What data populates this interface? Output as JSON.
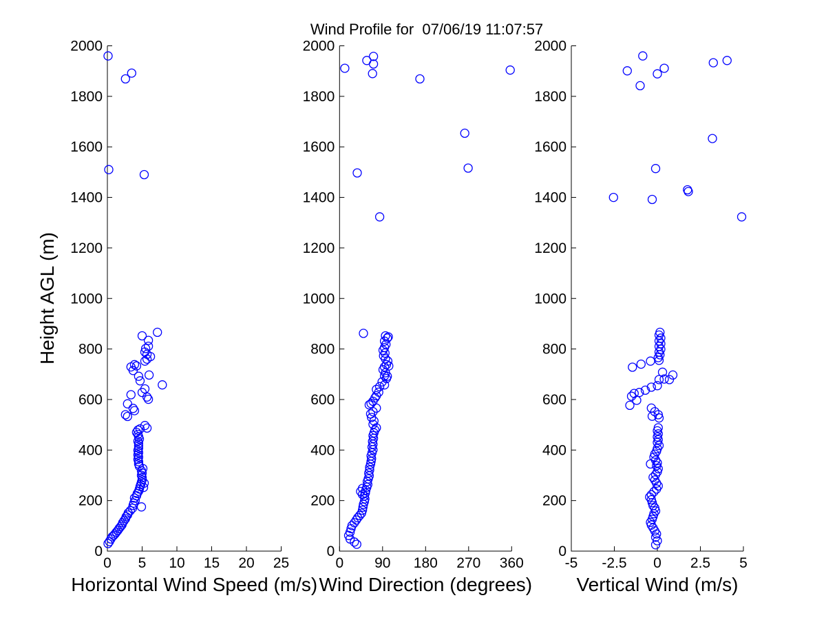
{
  "figure": {
    "title": "Wind Profile for  07/06/19 11:07:57",
    "background": "#ffffff",
    "axis_color": "#000000",
    "marker_color": "#0000ff",
    "marker_shape": "open-circle"
  },
  "chart_data": [
    {
      "type": "scatter",
      "xlabel": "Horizontal Wind Speed (m/s)",
      "ylabel": "Height AGL (m)",
      "xlim": [
        0,
        25
      ],
      "xticks": [
        0,
        5,
        10,
        15,
        20,
        25
      ],
      "ylim": [
        0,
        2000
      ],
      "yticks": [
        0,
        200,
        400,
        600,
        800,
        1000,
        1200,
        1400,
        1600,
        1800,
        2000
      ],
      "grid": false,
      "legend": null,
      "points": [
        [
          0.1,
          30
        ],
        [
          0.3,
          38
        ],
        [
          0.5,
          48
        ],
        [
          0.7,
          57
        ],
        [
          0.9,
          62
        ],
        [
          1.1,
          68
        ],
        [
          1.3,
          75
        ],
        [
          1.5,
          82
        ],
        [
          1.7,
          90
        ],
        [
          1.9,
          97
        ],
        [
          2.1,
          104
        ],
        [
          2.2,
          112
        ],
        [
          2.4,
          120
        ],
        [
          2.6,
          128
        ],
        [
          2.7,
          136
        ],
        [
          2.9,
          143
        ],
        [
          3.0,
          151
        ],
        [
          3.3,
          160
        ],
        [
          3.6,
          170
        ],
        [
          4.9,
          175
        ],
        [
          3.7,
          181
        ],
        [
          3.8,
          190
        ],
        [
          4.0,
          200
        ],
        [
          3.9,
          210
        ],
        [
          4.2,
          219
        ],
        [
          4.3,
          228
        ],
        [
          4.5,
          237
        ],
        [
          4.6,
          246
        ],
        [
          5.2,
          252
        ],
        [
          4.7,
          256
        ],
        [
          4.8,
          264
        ],
        [
          5.3,
          269
        ],
        [
          4.9,
          273
        ],
        [
          5.0,
          282
        ],
        [
          5.0,
          291
        ],
        [
          4.9,
          300
        ],
        [
          5.0,
          309
        ],
        [
          4.9,
          318
        ],
        [
          5.1,
          327
        ],
        [
          4.6,
          336
        ],
        [
          4.5,
          345
        ],
        [
          4.5,
          354
        ],
        [
          4.4,
          363
        ],
        [
          4.5,
          372
        ],
        [
          4.4,
          381
        ],
        [
          4.5,
          390
        ],
        [
          4.4,
          399
        ],
        [
          4.5,
          408
        ],
        [
          4.5,
          417
        ],
        [
          4.5,
          426
        ],
        [
          4.4,
          435
        ],
        [
          4.6,
          444
        ],
        [
          4.5,
          453
        ],
        [
          4.4,
          462
        ],
        [
          4.2,
          470
        ],
        [
          4.4,
          479
        ],
        [
          4.7,
          484
        ],
        [
          5.7,
          487
        ],
        [
          5.4,
          497
        ],
        [
          2.9,
          533
        ],
        [
          2.6,
          540
        ],
        [
          3.9,
          556
        ],
        [
          3.7,
          565
        ],
        [
          2.9,
          583
        ],
        [
          5.9,
          601
        ],
        [
          5.7,
          610
        ],
        [
          3.4,
          619
        ],
        [
          5.0,
          628
        ],
        [
          5.4,
          642
        ],
        [
          7.9,
          658
        ],
        [
          4.7,
          674
        ],
        [
          4.5,
          692
        ],
        [
          6.0,
          697
        ],
        [
          3.7,
          715
        ],
        [
          3.4,
          729
        ],
        [
          4.2,
          733
        ],
        [
          3.9,
          738
        ],
        [
          5.4,
          752
        ],
        [
          5.7,
          760
        ],
        [
          6.2,
          770
        ],
        [
          5.7,
          779
        ],
        [
          5.4,
          788
        ],
        [
          5.5,
          802
        ],
        [
          5.9,
          811
        ],
        [
          5.9,
          834
        ],
        [
          5.0,
          852
        ],
        [
          7.2,
          866
        ],
        [
          5.3,
          1490
        ],
        [
          0.2,
          1510
        ],
        [
          2.6,
          1869
        ],
        [
          3.5,
          1892
        ],
        [
          0.1,
          1960
        ]
      ]
    },
    {
      "type": "scatter",
      "xlabel": "Wind Direction (degrees)",
      "ylabel": "Height AGL (m)",
      "xlim": [
        0,
        360
      ],
      "xticks": [
        0,
        90,
        180,
        270,
        360
      ],
      "ylim": [
        0,
        2000
      ],
      "yticks": [
        0,
        200,
        400,
        600,
        800,
        1000,
        1200,
        1400,
        1600,
        1800,
        2000
      ],
      "grid": false,
      "legend": null,
      "points": [
        [
          36,
          27
        ],
        [
          31,
          36
        ],
        [
          22,
          48
        ],
        [
          19,
          62
        ],
        [
          22,
          75
        ],
        [
          24,
          89
        ],
        [
          26,
          101
        ],
        [
          31,
          112
        ],
        [
          35,
          123
        ],
        [
          38,
          132
        ],
        [
          42,
          141
        ],
        [
          46,
          150
        ],
        [
          48,
          162
        ],
        [
          49,
          174
        ],
        [
          50,
          185
        ],
        [
          52,
          196
        ],
        [
          53,
          207
        ],
        [
          52,
          218
        ],
        [
          48,
          224
        ],
        [
          54,
          230
        ],
        [
          44,
          236
        ],
        [
          55,
          241
        ],
        [
          48,
          248
        ],
        [
          57,
          253
        ],
        [
          59,
          264
        ],
        [
          58,
          275
        ],
        [
          60,
          286
        ],
        [
          62,
          298
        ],
        [
          61,
          309
        ],
        [
          63,
          321
        ],
        [
          63,
          332
        ],
        [
          65,
          344
        ],
        [
          66,
          355
        ],
        [
          67,
          366
        ],
        [
          66,
          377
        ],
        [
          68,
          389
        ],
        [
          70,
          401
        ],
        [
          68,
          412
        ],
        [
          70,
          423
        ],
        [
          69,
          434
        ],
        [
          71,
          446
        ],
        [
          70,
          457
        ],
        [
          72,
          468
        ],
        [
          74,
          479
        ],
        [
          77,
          488
        ],
        [
          70,
          502
        ],
        [
          72,
          515
        ],
        [
          67,
          529
        ],
        [
          65,
          543
        ],
        [
          70,
          552
        ],
        [
          77,
          566
        ],
        [
          62,
          579
        ],
        [
          66,
          584
        ],
        [
          70,
          593
        ],
        [
          74,
          606
        ],
        [
          77,
          615
        ],
        [
          82,
          629
        ],
        [
          77,
          640
        ],
        [
          84,
          651
        ],
        [
          94,
          658
        ],
        [
          89,
          670
        ],
        [
          98,
          683
        ],
        [
          100,
          692
        ],
        [
          94,
          694
        ],
        [
          96,
          706
        ],
        [
          91,
          718
        ],
        [
          94,
          729
        ],
        [
          103,
          733
        ],
        [
          98,
          738
        ],
        [
          101,
          752
        ],
        [
          96,
          761
        ],
        [
          92,
          773
        ],
        [
          95,
          784
        ],
        [
          91,
          795
        ],
        [
          94,
          806
        ],
        [
          97,
          818
        ],
        [
          94,
          831
        ],
        [
          100,
          843
        ],
        [
          102,
          848
        ],
        [
          96,
          852
        ],
        [
          50,
          862
        ],
        [
          11,
          1911
        ],
        [
          57,
          1942
        ],
        [
          71,
          1958
        ],
        [
          71,
          1928
        ],
        [
          69,
          1890
        ],
        [
          168,
          1869
        ],
        [
          357,
          1904
        ],
        [
          262,
          1654
        ],
        [
          269,
          1516
        ],
        [
          37,
          1497
        ],
        [
          84,
          1323
        ]
      ]
    },
    {
      "type": "scatter",
      "xlabel": "Vertical Wind (m/s)",
      "ylabel": "Height AGL (m)",
      "xlim": [
        -5,
        5
      ],
      "xticks": [
        -5,
        -2.5,
        0,
        2.5,
        5
      ],
      "ylim": [
        0,
        2000
      ],
      "yticks": [
        0,
        200,
        400,
        600,
        800,
        1000,
        1200,
        1400,
        1600,
        1800,
        2000
      ],
      "grid": false,
      "legend": null,
      "points": [
        [
          -0.1,
          25
        ],
        [
          0,
          41
        ],
        [
          -0.1,
          55
        ],
        [
          -0.05,
          68
        ],
        [
          -0.15,
          80
        ],
        [
          -0.25,
          92
        ],
        [
          -0.35,
          103
        ],
        [
          -0.4,
          114
        ],
        [
          -0.3,
          126
        ],
        [
          -0.25,
          137
        ],
        [
          -0.2,
          148
        ],
        [
          -0.1,
          159
        ],
        [
          -0.15,
          171
        ],
        [
          -0.25,
          180
        ],
        [
          -0.3,
          192
        ],
        [
          -0.35,
          203
        ],
        [
          -0.45,
          214
        ],
        [
          -0.35,
          223
        ],
        [
          -0.2,
          235
        ],
        [
          -0.05,
          246
        ],
        [
          0.05,
          258
        ],
        [
          -0.05,
          269
        ],
        [
          -0.15,
          281
        ],
        [
          -0.25,
          292
        ],
        [
          -0.1,
          303
        ],
        [
          0,
          314
        ],
        [
          0.05,
          326
        ],
        [
          -0.05,
          338
        ],
        [
          -0.4,
          345
        ],
        [
          0,
          349
        ],
        [
          -0.1,
          360
        ],
        [
          -0.2,
          372
        ],
        [
          -0.15,
          384
        ],
        [
          -0.05,
          395
        ],
        [
          0,
          406
        ],
        [
          0.1,
          418
        ],
        [
          0,
          430
        ],
        [
          0.05,
          441
        ],
        [
          0,
          452
        ],
        [
          0.05,
          464
        ],
        [
          0,
          476
        ],
        [
          0.05,
          488
        ],
        [
          0.1,
          527
        ],
        [
          -0.3,
          534
        ],
        [
          0.05,
          540
        ],
        [
          -0.15,
          552
        ],
        [
          -0.35,
          566
        ],
        [
          -1.6,
          577
        ],
        [
          -1.2,
          597
        ],
        [
          -1.5,
          613
        ],
        [
          -1.35,
          624
        ],
        [
          -1.05,
          628
        ],
        [
          -0.7,
          637
        ],
        [
          -0.35,
          649
        ],
        [
          0,
          655
        ],
        [
          0.1,
          679
        ],
        [
          0.7,
          679
        ],
        [
          0.4,
          681
        ],
        [
          0.9,
          697
        ],
        [
          0.3,
          708
        ],
        [
          -1.45,
          728
        ],
        [
          -0.95,
          740
        ],
        [
          -0.4,
          752
        ],
        [
          0.1,
          755
        ],
        [
          0.05,
          766
        ],
        [
          0.15,
          777
        ],
        [
          0.1,
          788
        ],
        [
          0.2,
          799
        ],
        [
          0.1,
          810
        ],
        [
          0.2,
          821
        ],
        [
          0.1,
          832
        ],
        [
          0.2,
          843
        ],
        [
          0.1,
          855
        ],
        [
          0.15,
          866
        ],
        [
          4.9,
          1323
        ],
        [
          -0.3,
          1392
        ],
        [
          -2.55,
          1400
        ],
        [
          1.8,
          1423
        ],
        [
          1.75,
          1430
        ],
        [
          -0.1,
          1514
        ],
        [
          3.2,
          1633
        ],
        [
          -1,
          1842
        ],
        [
          0,
          1889
        ],
        [
          -1.75,
          1901
        ],
        [
          0.4,
          1911
        ],
        [
          3.25,
          1933
        ],
        [
          4.05,
          1942
        ],
        [
          -0.85,
          1960
        ]
      ]
    }
  ]
}
